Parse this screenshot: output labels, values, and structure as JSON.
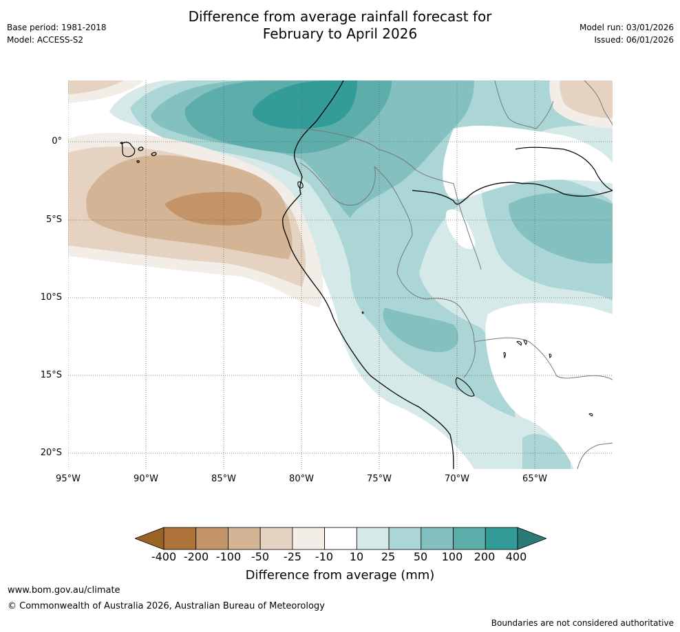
{
  "title_line1": "Difference from average rainfall forecast for",
  "title_line2": "February to April 2026",
  "base_period": "Base period: 1981-2018",
  "model": "Model: ACCESS-S2",
  "model_run": "Model run: 03/01/2026",
  "issued": "Issued: 06/01/2026",
  "lat_labels": [
    "0°",
    "5°S",
    "10°S",
    "15°S",
    "20°S"
  ],
  "lon_labels": [
    "95°W",
    "90°W",
    "85°W",
    "80°W",
    "75°W",
    "70°W",
    "65°W"
  ],
  "colorbar": {
    "ticks": [
      "-400",
      "-200",
      "-100",
      "-50",
      "-25",
      "-10",
      "10",
      "25",
      "50",
      "100",
      "200",
      "400"
    ],
    "colors": [
      "#9a6425",
      "#ad733b",
      "#c29468",
      "#d3b495",
      "#e5d2c0",
      "#f2ede7",
      "#ffffff",
      "#d5e9e8",
      "#acd6d5",
      "#83c0bf",
      "#5dadaa",
      "#339b98",
      "#2a7a78"
    ],
    "label": "Difference from average (mm)"
  },
  "website": "www.bom.gov.au/climate",
  "copyright": "© Commonwealth of Australia 2026, Australian Bureau of Meteorology",
  "boundaries_note": "Boundaries are not considered authoritative"
}
